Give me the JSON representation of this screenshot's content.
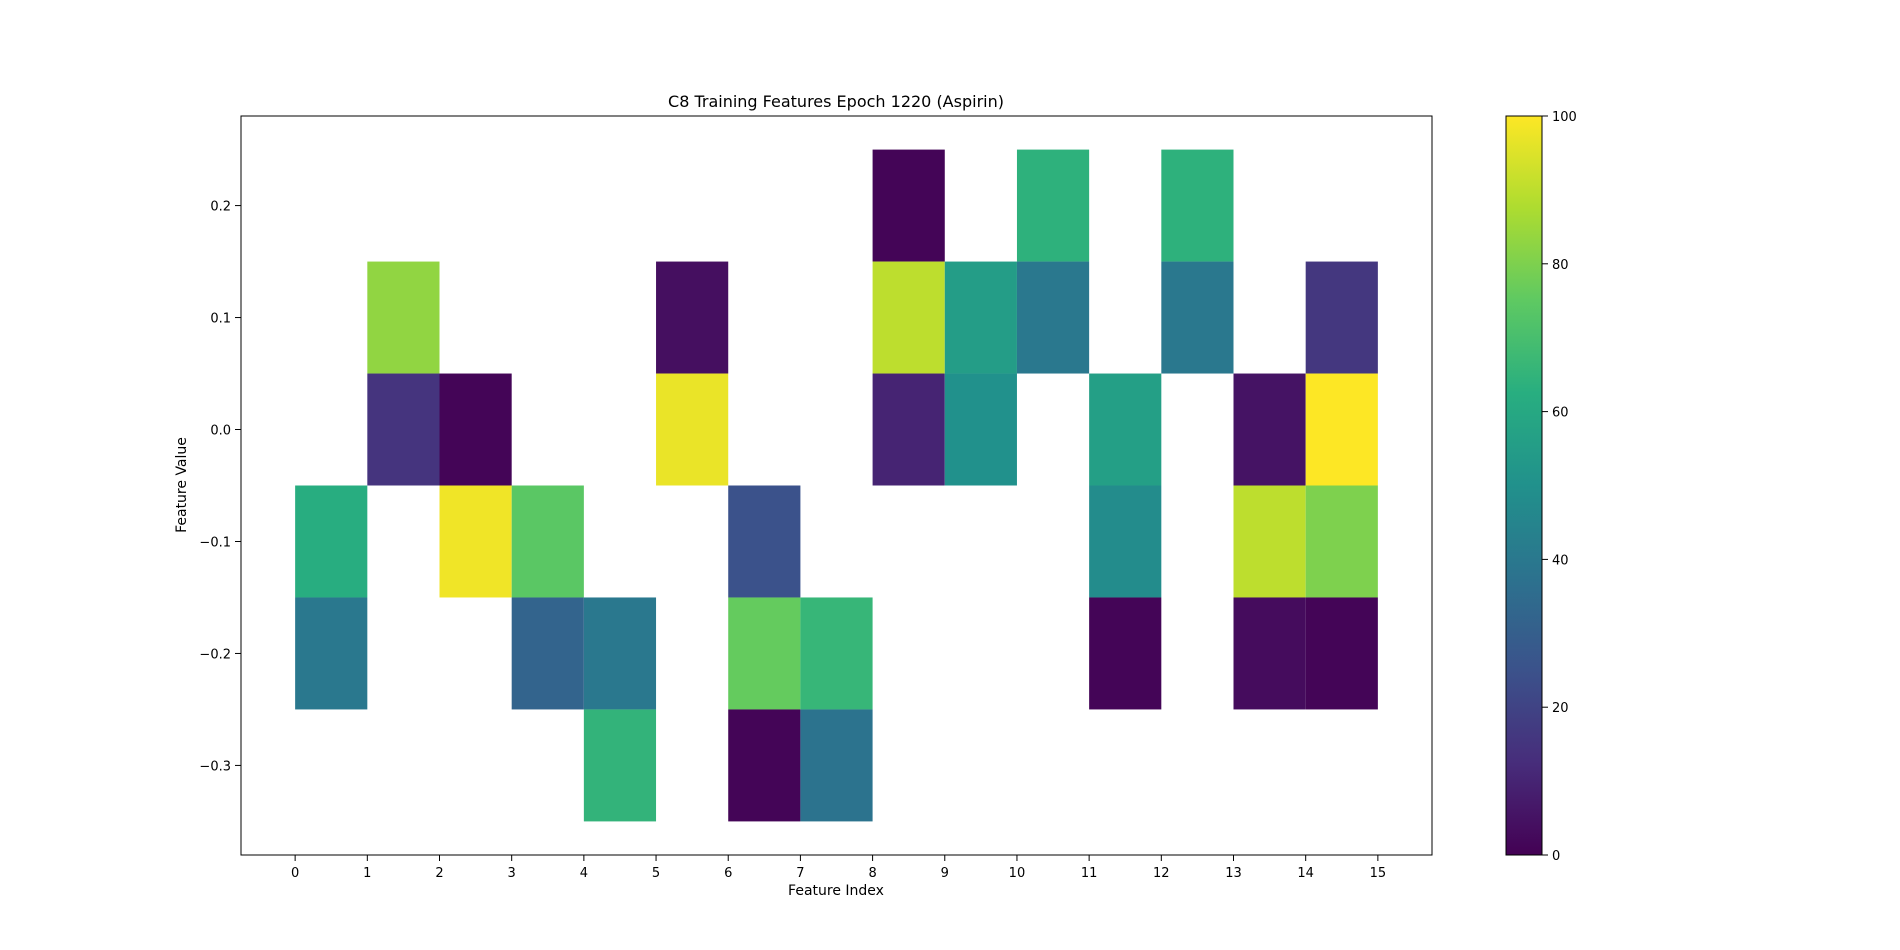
{
  "chart_data": {
    "type": "heatmap",
    "title": "C8 Training Features Epoch 1220 (Aspirin)",
    "xlabel": "Feature Index",
    "ylabel": "Feature Value",
    "x_ticks": [
      0,
      1,
      2,
      3,
      4,
      5,
      6,
      7,
      8,
      9,
      10,
      11,
      12,
      13,
      14,
      15
    ],
    "y_ticks": [
      0.2,
      0.1,
      0.0,
      -0.1,
      -0.2,
      -0.3
    ],
    "y_tick_labels": [
      "0.2",
      "0.1",
      "0.0",
      "−0.1",
      "−0.2",
      "−0.3"
    ],
    "xlim": [
      -0.75,
      15.75
    ],
    "ylim": [
      -0.38,
      0.28
    ],
    "colormap": "viridis",
    "colorbar": {
      "range": [
        0,
        100
      ],
      "ticks": [
        0,
        20,
        40,
        60,
        80,
        100
      ]
    },
    "cell_width": 1,
    "cell_height": 0.1,
    "grid": false,
    "cells": [
      {
        "x": 0,
        "y": -0.1,
        "value": 62
      },
      {
        "x": 0,
        "y": -0.2,
        "value": 40
      },
      {
        "x": 1,
        "y": 0.1,
        "value": 83
      },
      {
        "x": 1,
        "y": 0.0,
        "value": 15
      },
      {
        "x": 2,
        "y": 0.0,
        "value": 1
      },
      {
        "x": 2,
        "y": -0.1,
        "value": 98
      },
      {
        "x": 3,
        "y": -0.1,
        "value": 74
      },
      {
        "x": 3,
        "y": -0.2,
        "value": 32
      },
      {
        "x": 4,
        "y": -0.2,
        "value": 40
      },
      {
        "x": 4,
        "y": -0.3,
        "value": 65
      },
      {
        "x": 5,
        "y": 0.1,
        "value": 4
      },
      {
        "x": 5,
        "y": 0.0,
        "value": 97
      },
      {
        "x": 6,
        "y": -0.1,
        "value": 25
      },
      {
        "x": 6,
        "y": -0.2,
        "value": 76
      },
      {
        "x": 6,
        "y": -0.3,
        "value": 1
      },
      {
        "x": 7,
        "y": -0.2,
        "value": 66
      },
      {
        "x": 7,
        "y": -0.3,
        "value": 38
      },
      {
        "x": 8,
        "y": 0.2,
        "value": 1
      },
      {
        "x": 8,
        "y": 0.1,
        "value": 90
      },
      {
        "x": 8,
        "y": 0.0,
        "value": 10
      },
      {
        "x": 9,
        "y": 0.1,
        "value": 55
      },
      {
        "x": 9,
        "y": 0.0,
        "value": 50
      },
      {
        "x": 10,
        "y": 0.2,
        "value": 64
      },
      {
        "x": 10,
        "y": 0.1,
        "value": 40
      },
      {
        "x": 11,
        "y": 0.0,
        "value": 56
      },
      {
        "x": 11,
        "y": -0.1,
        "value": 48
      },
      {
        "x": 11,
        "y": -0.2,
        "value": 1
      },
      {
        "x": 12,
        "y": 0.2,
        "value": 64
      },
      {
        "x": 12,
        "y": 0.1,
        "value": 40
      },
      {
        "x": 13,
        "y": 0.0,
        "value": 5
      },
      {
        "x": 13,
        "y": -0.1,
        "value": 90
      },
      {
        "x": 13,
        "y": -0.2,
        "value": 3
      },
      {
        "x": 14,
        "y": 0.1,
        "value": 16
      },
      {
        "x": 14,
        "y": 0.0,
        "value": 100
      },
      {
        "x": 14,
        "y": -0.1,
        "value": 80
      },
      {
        "x": 14,
        "y": -0.2,
        "value": 1
      }
    ]
  }
}
